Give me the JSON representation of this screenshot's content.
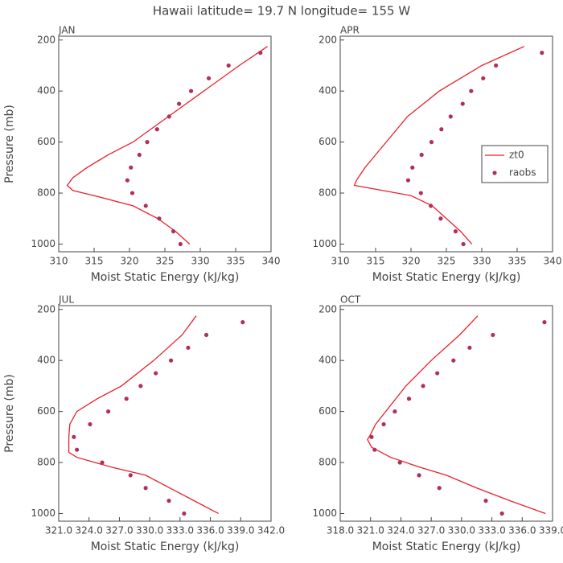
{
  "title": "Hawaii  latitude= 19.7 N longitude= 155 W",
  "chart_data": [
    {
      "type": "line",
      "title": "JAN",
      "xlabel": "Moist Static Energy (kJ/kg)",
      "ylabel": "Pressure (mb)",
      "xlim": [
        310,
        340
      ],
      "xticks": [
        310,
        315,
        320,
        325,
        330,
        335,
        340
      ],
      "ylim": [
        1030,
        185
      ],
      "yticks": [
        200,
        400,
        600,
        800,
        1000
      ],
      "series": [
        {
          "name": "zt0",
          "type": "line",
          "color": "#e8202a",
          "pressure": [
            225,
            300,
            400,
            500,
            600,
            650,
            700,
            740,
            770,
            790,
            810,
            850,
            900,
            950,
            1000
          ],
          "values": [
            339.5,
            335.5,
            330.5,
            325.5,
            320.5,
            317,
            314,
            312,
            311.2,
            312,
            315,
            320.5,
            324,
            326.5,
            328.5
          ]
        },
        {
          "name": "raobs",
          "type": "scatter",
          "color": "#b0305a",
          "pressure": [
            250,
            300,
            350,
            400,
            450,
            500,
            550,
            600,
            650,
            700,
            750,
            800,
            850,
            900,
            950,
            1000
          ],
          "values": [
            338.5,
            334,
            331.2,
            328.7,
            327,
            325.6,
            323.9,
            322.5,
            321.4,
            320.2,
            319.7,
            320.4,
            322.3,
            324.2,
            326.2,
            327.2
          ]
        }
      ]
    },
    {
      "type": "line",
      "title": "APR",
      "xlabel": "Moist Static Energy (kJ/kg)",
      "legend": "right",
      "xlim": [
        310,
        340
      ],
      "xticks": [
        310,
        315,
        320,
        325,
        330,
        335,
        340
      ],
      "ylim": [
        1030,
        185
      ],
      "yticks": [
        200,
        400,
        600,
        800,
        1000
      ],
      "series": [
        {
          "name": "zt0",
          "type": "line",
          "color": "#e8202a",
          "pressure": [
            225,
            300,
            400,
            500,
            600,
            700,
            750,
            770,
            785,
            810,
            850,
            900,
            950,
            1000
          ],
          "values": [
            336,
            330,
            324,
            319.5,
            316.5,
            313.5,
            312.3,
            312,
            315,
            320,
            323,
            325,
            327,
            328.6
          ]
        },
        {
          "name": "raobs",
          "type": "scatter",
          "color": "#b0305a",
          "pressure": [
            250,
            300,
            350,
            400,
            450,
            500,
            550,
            600,
            650,
            700,
            750,
            800,
            850,
            900,
            950,
            1000
          ],
          "values": [
            338.5,
            332,
            330.2,
            328.5,
            327.3,
            325.6,
            324.3,
            322.9,
            321.5,
            320.2,
            319.6,
            321.4,
            322.8,
            324.2,
            326.3,
            327.4
          ]
        }
      ]
    },
    {
      "type": "line",
      "title": "JUL",
      "xlabel": "Moist Static Energy (kJ/kg)",
      "ylabel": "Pressure (mb)",
      "xlim": [
        321,
        342
      ],
      "xticks": [
        {
          "value": 321,
          "label": "321.0"
        },
        {
          "value": 324,
          "label": "324.0"
        },
        {
          "value": 327,
          "label": "327.0"
        },
        {
          "value": 330,
          "label": "330.0"
        },
        {
          "value": 333,
          "label": "333.0"
        },
        {
          "value": 336,
          "label": "336.0"
        },
        {
          "value": 339,
          "label": "339.0"
        },
        {
          "value": 342,
          "label": "342.0"
        }
      ],
      "ylim": [
        1030,
        185
      ],
      "yticks": [
        200,
        400,
        600,
        800,
        1000
      ],
      "series": [
        {
          "name": "zt0",
          "type": "line",
          "color": "#e8202a",
          "pressure": [
            225,
            300,
            400,
            500,
            550,
            600,
            650,
            700,
            760,
            780,
            820,
            850,
            900,
            950,
            1000
          ],
          "values": [
            334.6,
            333.2,
            330.4,
            327.2,
            324.8,
            322.8,
            322.1,
            322,
            322,
            322.8,
            326.4,
            329.6,
            332,
            334.4,
            336.8
          ]
        },
        {
          "name": "raobs",
          "type": "scatter",
          "color": "#b0305a",
          "pressure": [
            250,
            300,
            350,
            400,
            450,
            500,
            550,
            600,
            650,
            700,
            750,
            800,
            850,
            900,
            950,
            1000
          ],
          "values": [
            339.2,
            335.6,
            333.8,
            332.1,
            330.6,
            329.1,
            327.7,
            325.9,
            324.1,
            322.5,
            322.8,
            325.3,
            328.1,
            329.6,
            331.9,
            333.4
          ]
        }
      ]
    },
    {
      "type": "line",
      "title": "OCT",
      "xlabel": "Moist Static Energy (kJ/kg)",
      "xlim": [
        318,
        339
      ],
      "xticks": [
        {
          "value": 318,
          "label": "318.0"
        },
        {
          "value": 321,
          "label": "321.0"
        },
        {
          "value": 324,
          "label": "324.0"
        },
        {
          "value": 327,
          "label": "327.0"
        },
        {
          "value": 330,
          "label": "330.0"
        },
        {
          "value": 333,
          "label": "333.0"
        },
        {
          "value": 336,
          "label": "336.0"
        },
        {
          "value": 339,
          "label": "339.0"
        }
      ],
      "ylim": [
        1030,
        185
      ],
      "yticks": [
        200,
        400,
        600,
        800,
        1000
      ],
      "series": [
        {
          "name": "zt0",
          "type": "line",
          "color": "#e8202a",
          "pressure": [
            225,
            300,
            400,
            500,
            600,
            650,
            690,
            710,
            740,
            780,
            820,
            850,
            900,
            950,
            1000
          ],
          "values": [
            331.6,
            329.8,
            327,
            324.5,
            322.5,
            321.5,
            321,
            320.7,
            321.1,
            323,
            326,
            328.5,
            331.5,
            334.8,
            338.3
          ]
        },
        {
          "name": "raobs",
          "type": "scatter",
          "color": "#b0305a",
          "pressure": [
            250,
            300,
            350,
            400,
            450,
            500,
            550,
            600,
            650,
            700,
            750,
            800,
            850,
            900,
            950,
            1000
          ],
          "values": [
            338.2,
            333.1,
            330.8,
            329.2,
            327.6,
            326.2,
            324.8,
            323.4,
            322.3,
            321.1,
            321.4,
            323.9,
            325.8,
            327.8,
            332.4,
            334
          ]
        }
      ]
    }
  ]
}
